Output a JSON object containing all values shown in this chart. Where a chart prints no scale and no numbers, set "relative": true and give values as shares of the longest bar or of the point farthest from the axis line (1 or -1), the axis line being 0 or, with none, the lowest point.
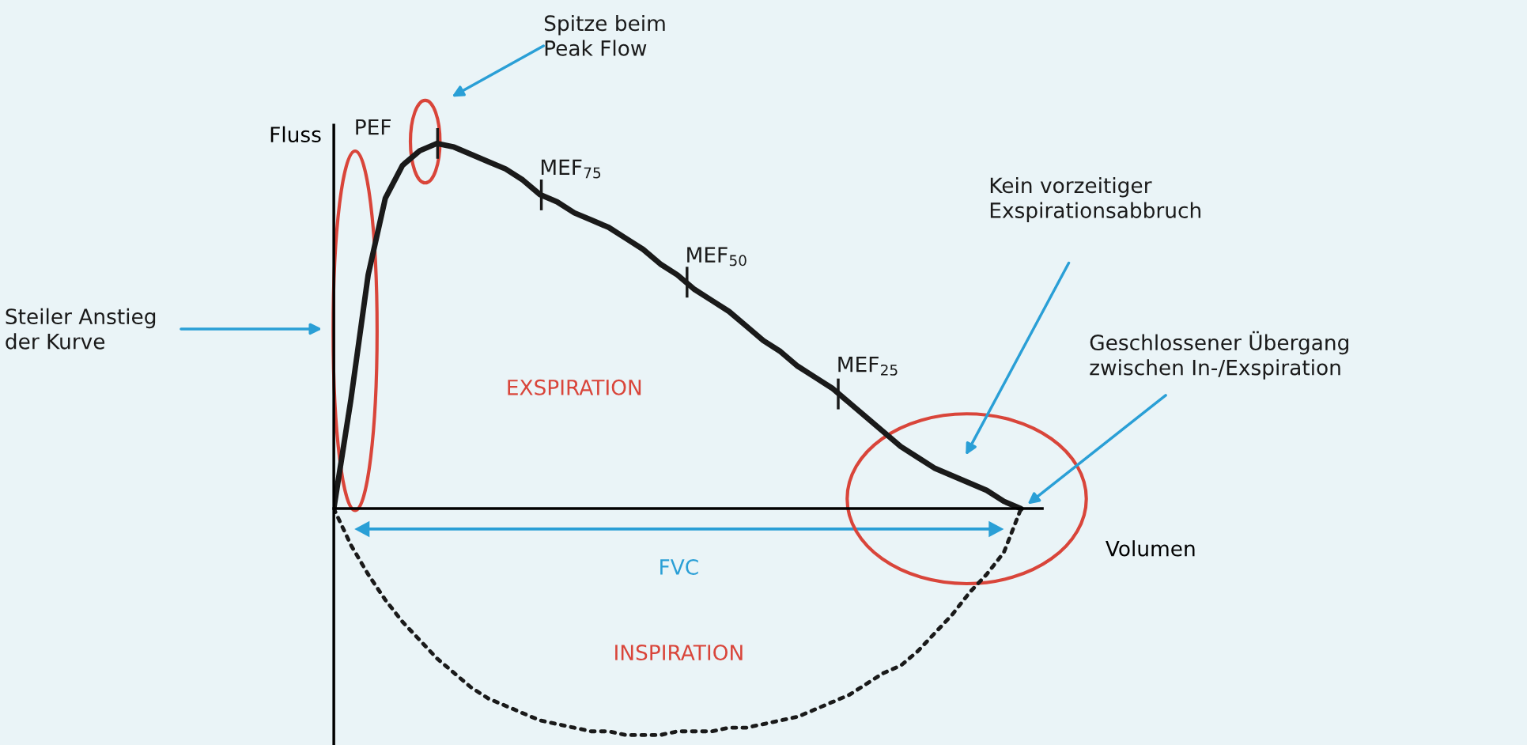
{
  "chart_data": {
    "type": "line",
    "relative": true,
    "xlabel": "Volumen",
    "ylabel": "Fluss",
    "marker": "none",
    "categories": [
      null,
      null,
      null,
      null,
      null,
      null,
      null,
      null,
      null,
      null,
      null,
      null,
      null,
      null,
      null,
      null,
      null,
      null,
      null,
      null,
      null,
      null,
      null,
      null,
      null,
      null,
      null,
      null,
      null,
      null,
      null,
      null,
      null,
      null,
      null,
      null,
      null,
      null,
      null,
      null,
      null
    ],
    "series": [
      {
        "color": "#1a1a1a",
        "line_style": "solid",
        "values": [
          0,
          0.3,
          0.64,
          0.85,
          0.94,
          0.98,
          1,
          0.99,
          0.97,
          0.95,
          0.93,
          0.9,
          0.86,
          0.84,
          0.81,
          0.79,
          0.77,
          0.74,
          0.71,
          0.67,
          0.64,
          0.6,
          0.57,
          0.54,
          0.5,
          0.46,
          0.43,
          0.39,
          0.36,
          0.33,
          0.29,
          0.25,
          0.21,
          0.17,
          0.14,
          0.11,
          0.09,
          0.07,
          0.05,
          0.02,
          0
        ]
      },
      {
        "color": "#1a1a1a",
        "line_style": "dotted",
        "values": [
          0,
          -0.1,
          -0.18,
          -0.25,
          -0.31,
          -0.36,
          -0.41,
          -0.45,
          -0.49,
          -0.52,
          -0.54,
          -0.56,
          -0.58,
          -0.59,
          -0.6,
          -0.61,
          -0.61,
          -0.62,
          -0.62,
          -0.62,
          -0.61,
          -0.61,
          -0.61,
          -0.6,
          -0.6,
          -0.59,
          -0.58,
          -0.57,
          -0.55,
          -0.53,
          -0.51,
          -0.48,
          -0.45,
          -0.43,
          -0.39,
          -0.34,
          -0.29,
          -0.23,
          -0.18,
          -0.12,
          0
        ]
      }
    ],
    "annotations": [
      "PEF",
      "MEF$_{75}$",
      "MEF$_{50}$",
      "MEF$_{25}$",
      "Spitze beim\nPeak Flow",
      "Steiler Anstieg\nder Kurve",
      "Kein vorzeitiger\nExspirationsabbruch",
      "Geschlossener Übergang\nzwischen In-/Exspiration",
      "EXSPIRATION",
      "FVC",
      "INSPIRATION"
    ]
  }
}
